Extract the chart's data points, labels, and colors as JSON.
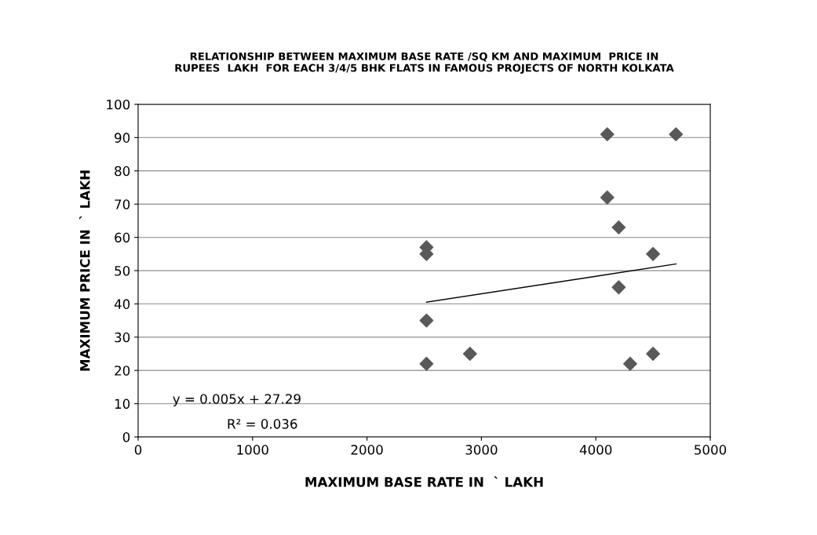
{
  "chart_data": {
    "type": "scatter",
    "title": "RELATIONSHIP BETWEEN MAXIMUM BASE RATE /SQ KM AND MAXIMUM  PRICE IN\nRUPEES  LAKH  FOR EACH 3/4/5 BHK FLATS IN FAMOUS PROJECTS OF NORTH KOLKATA",
    "xlabel": "MAXIMUM BASE RATE IN  ` LAKH",
    "ylabel": "MAXIMUM PRICE IN  ` LAKH",
    "series": [
      {
        "color": "#595959",
        "marker": "diamond",
        "x": [
          2520,
          2520,
          2520,
          2520,
          2900,
          4100,
          4100,
          4200,
          4200,
          4300,
          4500,
          4500,
          4700
        ],
        "values": [
          57,
          55,
          35,
          22,
          25,
          91,
          72,
          63,
          45,
          22,
          55,
          25,
          91
        ]
      },
      {
        "type": "line",
        "color": "#000000",
        "marker": "none",
        "x": [
          2520,
          4700
        ],
        "values": [
          40.5,
          52
        ]
      }
    ],
    "annotations": [
      "y = 0.005x + 27.29",
      "R² = 0.036"
    ],
    "xlim": [
      0,
      5000
    ],
    "xticks": [
      0,
      1000,
      2000,
      3000,
      4000,
      5000
    ],
    "ylim": [
      0,
      100
    ],
    "yticks": [
      0,
      10,
      20,
      30,
      40,
      50,
      60,
      70,
      80,
      90,
      100
    ],
    "grid": "y",
    "legend": false
  }
}
